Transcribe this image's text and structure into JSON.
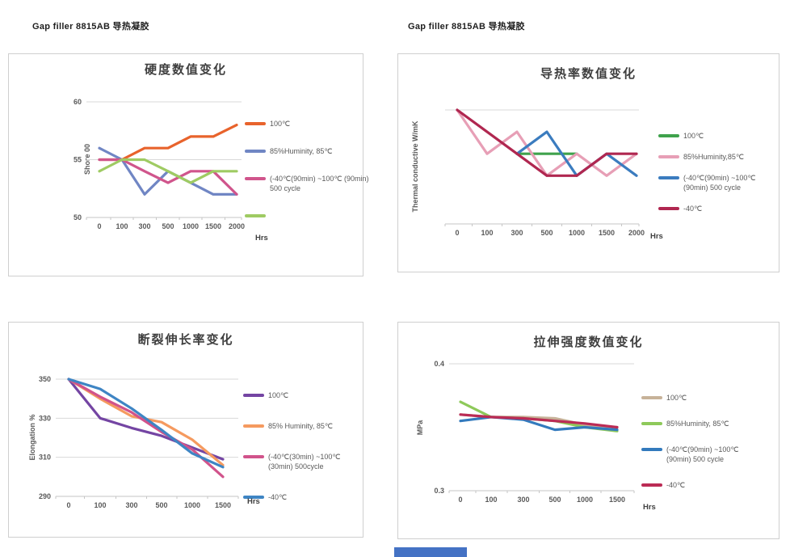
{
  "page": {
    "header_left": "Gap filler 8815AB  导热凝胶",
    "header_right": "Gap filler 8815AB  导热凝胶",
    "bottom_bar_color": "#4472C4"
  },
  "chart_data": [
    {
      "type": "line",
      "title": "硬度数值变化",
      "ylabel": "Shore 00",
      "xlabel": "Hrs",
      "categories": [
        "0",
        "100",
        "300",
        "500",
        "1000",
        "1500",
        "2000"
      ],
      "ylim": [
        50,
        60
      ],
      "yticks": [
        {
          "value": 60,
          "label": "60"
        },
        {
          "value": 55,
          "label": "55"
        },
        {
          "value": 50,
          "label": "50"
        }
      ],
      "grid": true,
      "legend_position": "right",
      "series": [
        {
          "name": "100℃",
          "color": "#E8632C",
          "values": [
            55,
            55,
            56,
            56,
            57,
            57,
            58
          ]
        },
        {
          "name": "85%Huminity, 85℃",
          "color": "#7086C4",
          "values": [
            56,
            55,
            52,
            54,
            53,
            52,
            52
          ]
        },
        {
          "name": "(-40℃(90min) ~100℃ (90min)\n500 cycle",
          "color": "#D0558C",
          "values": [
            55,
            55,
            54,
            53,
            54,
            54,
            52
          ]
        },
        {
          "name": "",
          "color": "#9FCB63",
          "values": [
            54,
            55,
            55,
            54,
            53,
            54,
            54
          ]
        }
      ]
    },
    {
      "type": "line",
      "title": "导热率数值变化",
      "ylabel": "Thermal conductive W/mK",
      "xlabel": "Hrs",
      "categories": [
        "0",
        "100",
        "300",
        "500",
        "1000",
        "1500",
        "2000"
      ],
      "ylim": [
        2.48,
        3.0
      ],
      "yticks": [
        {
          "value": 3.0,
          "label": ""
        }
      ],
      "grid": true,
      "legend_position": "right",
      "series": [
        {
          "name": "100℃",
          "color": "#3FA24C",
          "values": [
            null,
            null,
            2.8,
            2.8,
            2.8,
            null,
            null
          ]
        },
        {
          "name": "85%Huminity,85℃",
          "color": "#E79FB6",
          "values": [
            3.0,
            2.8,
            2.9,
            2.7,
            2.8,
            2.7,
            2.8
          ]
        },
        {
          "name": "(-40℃(90min)  ~100℃\n(90min)   500 cycle",
          "color": "#3B7CBF",
          "values": [
            null,
            null,
            2.8,
            2.9,
            2.7,
            2.8,
            2.7
          ]
        },
        {
          "name": "-40℃",
          "color": "#B02750",
          "values": [
            3.0,
            2.9,
            2.8,
            2.7,
            2.7,
            2.8,
            2.8
          ]
        }
      ]
    },
    {
      "type": "line",
      "title": "断裂伸长率变化",
      "ylabel": "Elongation %",
      "xlabel": "Hrs",
      "categories": [
        "0",
        "100",
        "300",
        "500",
        "1000",
        "1500"
      ],
      "ylim": [
        290,
        350
      ],
      "yticks": [
        {
          "value": 350,
          "label": "350"
        },
        {
          "value": 330,
          "label": "330"
        },
        {
          "value": 310,
          "label": "310"
        },
        {
          "value": 290,
          "label": "290"
        }
      ],
      "grid": true,
      "legend_position": "right",
      "series": [
        {
          "name": "100℃",
          "color": "#7445A3",
          "values": [
            350,
            330,
            325,
            321,
            315,
            309
          ]
        },
        {
          "name": "85% Huminity, 85℃",
          "color": "#F59A5F",
          "values": [
            350,
            340,
            331,
            328,
            319,
            306
          ]
        },
        {
          "name": "(-40℃(30min)  ~100℃\n(30min)   500cycle",
          "color": "#D1538B",
          "values": [
            350,
            341,
            333,
            323,
            314,
            300
          ]
        },
        {
          "name": "-40℃",
          "color": "#3E85C4",
          "values": [
            350,
            345,
            335,
            324,
            312,
            305
          ]
        }
      ]
    },
    {
      "type": "line",
      "title": "拉伸强度数值变化",
      "ylabel": "MPa",
      "xlabel": "Hrs",
      "categories": [
        "0",
        "100",
        "300",
        "500",
        "1000",
        "1500"
      ],
      "ylim": [
        0.3,
        0.4
      ],
      "yticks": [
        {
          "value": 0.4,
          "label": "0.4"
        },
        {
          "value": 0.3,
          "label": "0.3"
        }
      ],
      "grid": true,
      "legend_position": "right",
      "series": [
        {
          "name": "100℃",
          "color": "#C7B299",
          "values": [
            0.36,
            0.358,
            0.358,
            0.357,
            0.352,
            0.35
          ]
        },
        {
          "name": "85%Huminity, 85℃",
          "color": "#8EC95A",
          "values": [
            0.37,
            0.358,
            0.357,
            0.355,
            0.35,
            0.347
          ]
        },
        {
          "name": "(-40℃(90min)  ~100℃\n(90min)   500 cycle",
          "color": "#337ABD",
          "values": [
            0.355,
            0.358,
            0.356,
            0.348,
            0.35,
            0.348
          ]
        },
        {
          "name": "-40℃",
          "color": "#BB2B55",
          "values": [
            0.36,
            0.358,
            0.357,
            0.355,
            0.353,
            0.35
          ]
        }
      ]
    }
  ]
}
